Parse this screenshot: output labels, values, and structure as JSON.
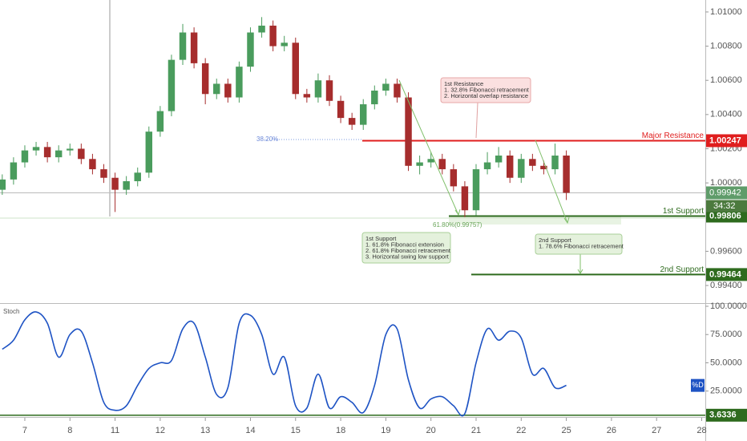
{
  "chart_data": [
    {
      "type": "candlestick",
      "xlim": [
        -0.55,
        15.08
      ],
      "ylim": [
        0.99297,
        1.0107
      ],
      "yticks": [
        {
          "value": 1.01,
          "label": "1.01000"
        },
        {
          "value": 1.008,
          "label": "1.00800"
        },
        {
          "value": 1.006,
          "label": "1.00600"
        },
        {
          "value": 1.004,
          "label": "1.00400"
        },
        {
          "value": 1.002,
          "label": "1.00200"
        },
        {
          "value": 1.0,
          "label": "1.00000"
        },
        {
          "value": 0.996,
          "label": "0.99600"
        },
        {
          "value": 0.994,
          "label": "0.99400"
        }
      ],
      "up_color": "#4a9c5d",
      "down_color": "#a62d2d",
      "x": [
        -0.5,
        -0.25,
        0,
        0.25,
        0.5,
        0.75,
        1,
        1.25,
        1.5,
        1.75,
        2,
        2.25,
        2.5,
        2.75,
        3,
        3.25,
        3.5,
        3.75,
        4,
        4.25,
        4.5,
        4.75,
        5,
        5.25,
        5.5,
        5.75,
        6,
        6.25,
        6.5,
        6.75,
        7,
        7.25,
        7.5,
        7.75,
        8,
        8.25,
        8.5,
        8.75,
        9,
        9.25,
        9.5,
        9.75,
        10,
        10.25,
        10.5,
        10.75,
        11,
        11.25,
        11.5,
        11.75,
        12
      ],
      "open": [
        0.9996,
        1.0002,
        1.0012,
        1.0019,
        1.0021,
        1.0015,
        1.0019,
        1.002,
        1.0014,
        1.0008,
        1.0003,
        0.9996,
        1.0001,
        1.0006,
        1.003,
        1.0042,
        1.0072,
        1.0088,
        1.007,
        1.0052,
        1.0058,
        1.005,
        1.0068,
        1.0088,
        1.0092,
        1.008,
        1.0082,
        1.0052,
        1.005,
        1.006,
        1.0048,
        1.0038,
        1.0034,
        1.0046,
        1.0054,
        1.0058,
        1.005,
        1.001,
        1.0012,
        1.0014,
        1.0008,
        0.9998,
        0.9984,
        1.0008,
        1.0012,
        1.0016,
        1.0003,
        1.0014,
        1.001,
        1.0008,
        1.0016
      ],
      "high": [
        1.0005,
        1.0015,
        1.0022,
        1.0024,
        1.0024,
        1.0022,
        1.0023,
        1.0023,
        1.0017,
        1.0011,
        1.0006,
        1.0004,
        1.0009,
        1.0033,
        1.0045,
        1.0075,
        1.0093,
        1.0091,
        1.0073,
        1.0061,
        1.0061,
        1.0071,
        1.0091,
        1.0097,
        1.0095,
        1.0086,
        1.0085,
        1.0055,
        1.0064,
        1.0063,
        1.0051,
        1.0041,
        1.0049,
        1.0057,
        1.0061,
        1.0061,
        1.0053,
        1.0016,
        1.0018,
        1.0017,
        1.0011,
        1.0001,
        1.0011,
        1.0018,
        1.0021,
        1.0019,
        1.0017,
        1.0017,
        1.0013,
        1.0023,
        1.0019
      ],
      "low": [
        0.9993,
        0.9999,
        1.0009,
        1.0016,
        1.0012,
        1.0012,
        1.0016,
        1.0011,
        1.0005,
        1.0,
        0.9983,
        0.9993,
        0.9998,
        1.0003,
        1.0027,
        1.0039,
        1.0069,
        1.0067,
        1.0046,
        1.0049,
        1.0047,
        1.0047,
        1.0065,
        1.0085,
        1.0077,
        1.0077,
        1.0049,
        1.0047,
        1.0047,
        1.0045,
        1.0035,
        1.0031,
        1.0031,
        1.0043,
        1.0051,
        1.0047,
        1.0007,
        1.0005,
        1.0009,
        1.0005,
        0.9995,
        0.998,
        0.9981,
        1.0005,
        1.0009,
        1.0,
        1.0,
        1.0007,
        1.0005,
        1.0005,
        0.999
      ],
      "close": [
        1.0002,
        1.0012,
        1.0019,
        1.0021,
        1.0015,
        1.0019,
        1.002,
        1.0014,
        1.0008,
        1.0003,
        0.9996,
        1.0001,
        1.0006,
        1.003,
        1.0042,
        1.0072,
        1.0088,
        1.007,
        1.0052,
        1.0058,
        1.005,
        1.0068,
        1.0088,
        1.0092,
        1.008,
        1.0082,
        1.0052,
        1.005,
        1.006,
        1.0048,
        1.0038,
        1.0034,
        1.0046,
        1.0054,
        1.0058,
        1.005,
        1.001,
        1.0012,
        1.0014,
        1.0008,
        0.9998,
        0.9984,
        1.0008,
        1.0012,
        1.0016,
        1.0003,
        1.0014,
        1.001,
        1.0008,
        1.0016,
        0.99942
      ],
      "countdown": "34:32",
      "levels": [
        {
          "label": "Major Resistance",
          "value": 1.00247,
          "color": "#e01e1e"
        },
        {
          "label": "1st Support",
          "value": 0.99806,
          "color": "#2e6b1e"
        },
        {
          "label": "2nd Support",
          "value": 0.99464,
          "color": "#2e6b1e"
        }
      ],
      "fib_labels": [
        "38.20%",
        "61.80%(0.99757)"
      ],
      "annotations": [
        {
          "lines": [
            "1st Resistance",
            "1. 32.8% Fibonacci retracement",
            "2. Horizontal overlap resistance"
          ]
        },
        {
          "lines": [
            "1st Support",
            "1. 61.8% Fibonacci extension",
            "2. 61.8% Fibonacci retracement",
            "3. Horizontal swing low support"
          ]
        },
        {
          "lines": [
            "2nd Support",
            "1. 78.6% Fibonacci retracement"
          ]
        }
      ]
    },
    {
      "type": "line",
      "title": "Stoch",
      "xlim": [
        -0.55,
        15.08
      ],
      "ylim": [
        2.1,
        101.4
      ],
      "xticks": [
        {
          "value": 0,
          "label": "7"
        },
        {
          "value": 1,
          "label": "8"
        },
        {
          "value": 2,
          "label": "11"
        },
        {
          "value": 3,
          "label": "12"
        },
        {
          "value": 4,
          "label": "13"
        },
        {
          "value": 5,
          "label": "14"
        },
        {
          "value": 6,
          "label": "15"
        },
        {
          "value": 7,
          "label": "18"
        },
        {
          "value": 8,
          "label": "19"
        },
        {
          "value": 9,
          "label": "20"
        },
        {
          "value": 10,
          "label": "21"
        },
        {
          "value": 11,
          "label": "22"
        },
        {
          "value": 12,
          "label": "25"
        },
        {
          "value": 13,
          "label": "26"
        },
        {
          "value": 14,
          "label": "27"
        },
        {
          "value": 15,
          "label": "28"
        }
      ],
      "yticks": [
        {
          "value": 100,
          "label": "100.0000"
        },
        {
          "value": 75,
          "label": "75.0000"
        },
        {
          "value": 50,
          "label": "50.0000"
        },
        {
          "value": 25,
          "label": "25.0000"
        }
      ],
      "x": [
        -0.5,
        -0.25,
        0,
        0.25,
        0.5,
        0.75,
        1,
        1.25,
        1.5,
        1.75,
        2,
        2.25,
        2.5,
        2.75,
        3,
        3.25,
        3.5,
        3.75,
        4,
        4.25,
        4.5,
        4.75,
        5,
        5.25,
        5.5,
        5.75,
        6,
        6.25,
        6.5,
        6.75,
        7,
        7.25,
        7.5,
        7.75,
        8,
        8.25,
        8.5,
        8.75,
        9,
        9.25,
        9.5,
        9.75,
        10,
        10.25,
        10.5,
        10.75,
        11,
        11.25,
        11.5,
        11.75,
        12
      ],
      "series": [
        {
          "name": "%D",
          "color": "#1e53c4",
          "values": [
            62,
            70,
            88,
            95,
            85,
            55,
            75,
            78,
            50,
            15,
            8,
            12,
            30,
            45,
            50,
            52,
            80,
            85,
            55,
            22,
            28,
            85,
            92,
            75,
            40,
            55,
            12,
            10,
            40,
            10,
            20,
            15,
            6,
            30,
            75,
            80,
            35,
            10,
            18,
            20,
            12,
            5,
            50,
            80,
            70,
            78,
            72,
            40,
            45,
            28,
            30
          ]
        }
      ],
      "level": {
        "value": 3.6336,
        "color": "#2e6b1e"
      }
    }
  ]
}
